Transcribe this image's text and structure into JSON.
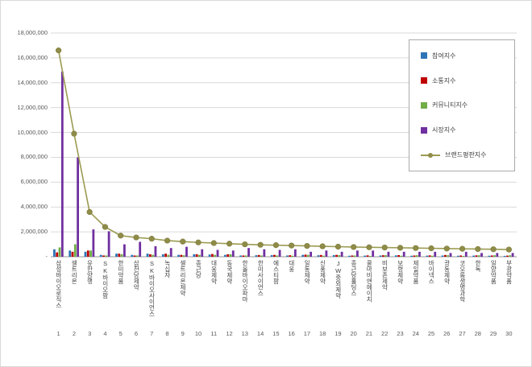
{
  "chart_data": {
    "type": "bar",
    "title": "",
    "xlabel": "",
    "ylabel": "",
    "ylim": [
      0,
      18000000
    ],
    "ytick_step": 2000000,
    "ytick_labels": [
      "18,000,000",
      "16,000,000",
      "14,000,000",
      "12,000,000",
      "10,000,000",
      "8,000,000",
      "6,000,000",
      "4,000,000",
      "2,000,000",
      "-"
    ],
    "grid": true,
    "legend_position": "right-top",
    "categories": [
      "삼성바이오로직스",
      "셀트리온",
      "유한양행",
      "SK바이오팜",
      "한미약품",
      "삼천당제약",
      "SK바이오사이언스",
      "녹십자",
      "셀트리온제약",
      "종근당",
      "대웅제약",
      "동국제약",
      "한올바이오파마",
      "한미사이언스",
      "에스티팜",
      "대웅",
      "일동제약",
      "신풍제약",
      "JW중외제약",
      "종근당홀딩스",
      "콜마비앤에이치",
      "비보존제약",
      "보령제약",
      "제일약품",
      "바이넥스",
      "광동제약",
      "코오롱생명과학",
      "한독",
      "일양약품",
      "부광약품"
    ],
    "ranks": [
      1,
      2,
      3,
      4,
      5,
      6,
      7,
      8,
      9,
      10,
      11,
      12,
      13,
      14,
      15,
      16,
      17,
      18,
      19,
      20,
      21,
      22,
      23,
      24,
      25,
      26,
      27,
      28,
      29,
      30
    ],
    "series": [
      {
        "name": "참여지수",
        "type": "bar",
        "color": "#2E75B6",
        "values": [
          600000,
          500000,
          400000,
          150000,
          250000,
          150000,
          250000,
          200000,
          150000,
          200000,
          180000,
          150000,
          100000,
          120000,
          130000,
          100000,
          150000,
          120000,
          130000,
          80000,
          90000,
          100000,
          110000,
          80000,
          90000,
          100000,
          80000,
          90000,
          80000,
          70000
        ]
      },
      {
        "name": "소통지수",
        "type": "bar",
        "color": "#C00000",
        "values": [
          350000,
          400000,
          500000,
          100000,
          250000,
          100000,
          200000,
          250000,
          150000,
          200000,
          220000,
          200000,
          100000,
          140000,
          150000,
          120000,
          170000,
          140000,
          150000,
          100000,
          110000,
          120000,
          130000,
          100000,
          110000,
          140000,
          100000,
          110000,
          100000,
          90000
        ]
      },
      {
        "name": "커뮤니티지수",
        "type": "bar",
        "color": "#70AD47",
        "values": [
          750000,
          1000000,
          500000,
          100000,
          200000,
          100000,
          150000,
          150000,
          120000,
          150000,
          150000,
          200000,
          100000,
          100000,
          100000,
          80000,
          150000,
          80000,
          130000,
          100000,
          60000,
          120000,
          80000,
          120000,
          80000,
          120000,
          60000,
          120000,
          120000,
          120000
        ]
      },
      {
        "name": "시장지수",
        "type": "bar",
        "color": "#7030A0",
        "values": [
          14900000,
          8000000,
          2200000,
          2050000,
          1000000,
          1200000,
          850000,
          700000,
          800000,
          600000,
          550000,
          500000,
          700000,
          600000,
          550000,
          600000,
          400000,
          500000,
          400000,
          500000,
          500000,
          400000,
          400000,
          400000,
          400000,
          300000,
          400000,
          300000,
          300000,
          300000
        ]
      },
      {
        "name": "브랜드평판지수",
        "type": "line",
        "color": "#9B9B51",
        "marker_color": "#8F8C48",
        "values": [
          16600000,
          9900000,
          3600000,
          2400000,
          1700000,
          1550000,
          1450000,
          1300000,
          1220000,
          1150000,
          1100000,
          1050000,
          1000000,
          960000,
          930000,
          900000,
          870000,
          840000,
          810000,
          780000,
          760000,
          740000,
          720000,
          700000,
          680000,
          660000,
          640000,
          620000,
          600000,
          580000
        ]
      }
    ],
    "colors": {
      "gridline": "#d9d9d9",
      "axis": "#9a9a9a",
      "tick_text": "#595959",
      "legend_border": "#ababab"
    }
  }
}
